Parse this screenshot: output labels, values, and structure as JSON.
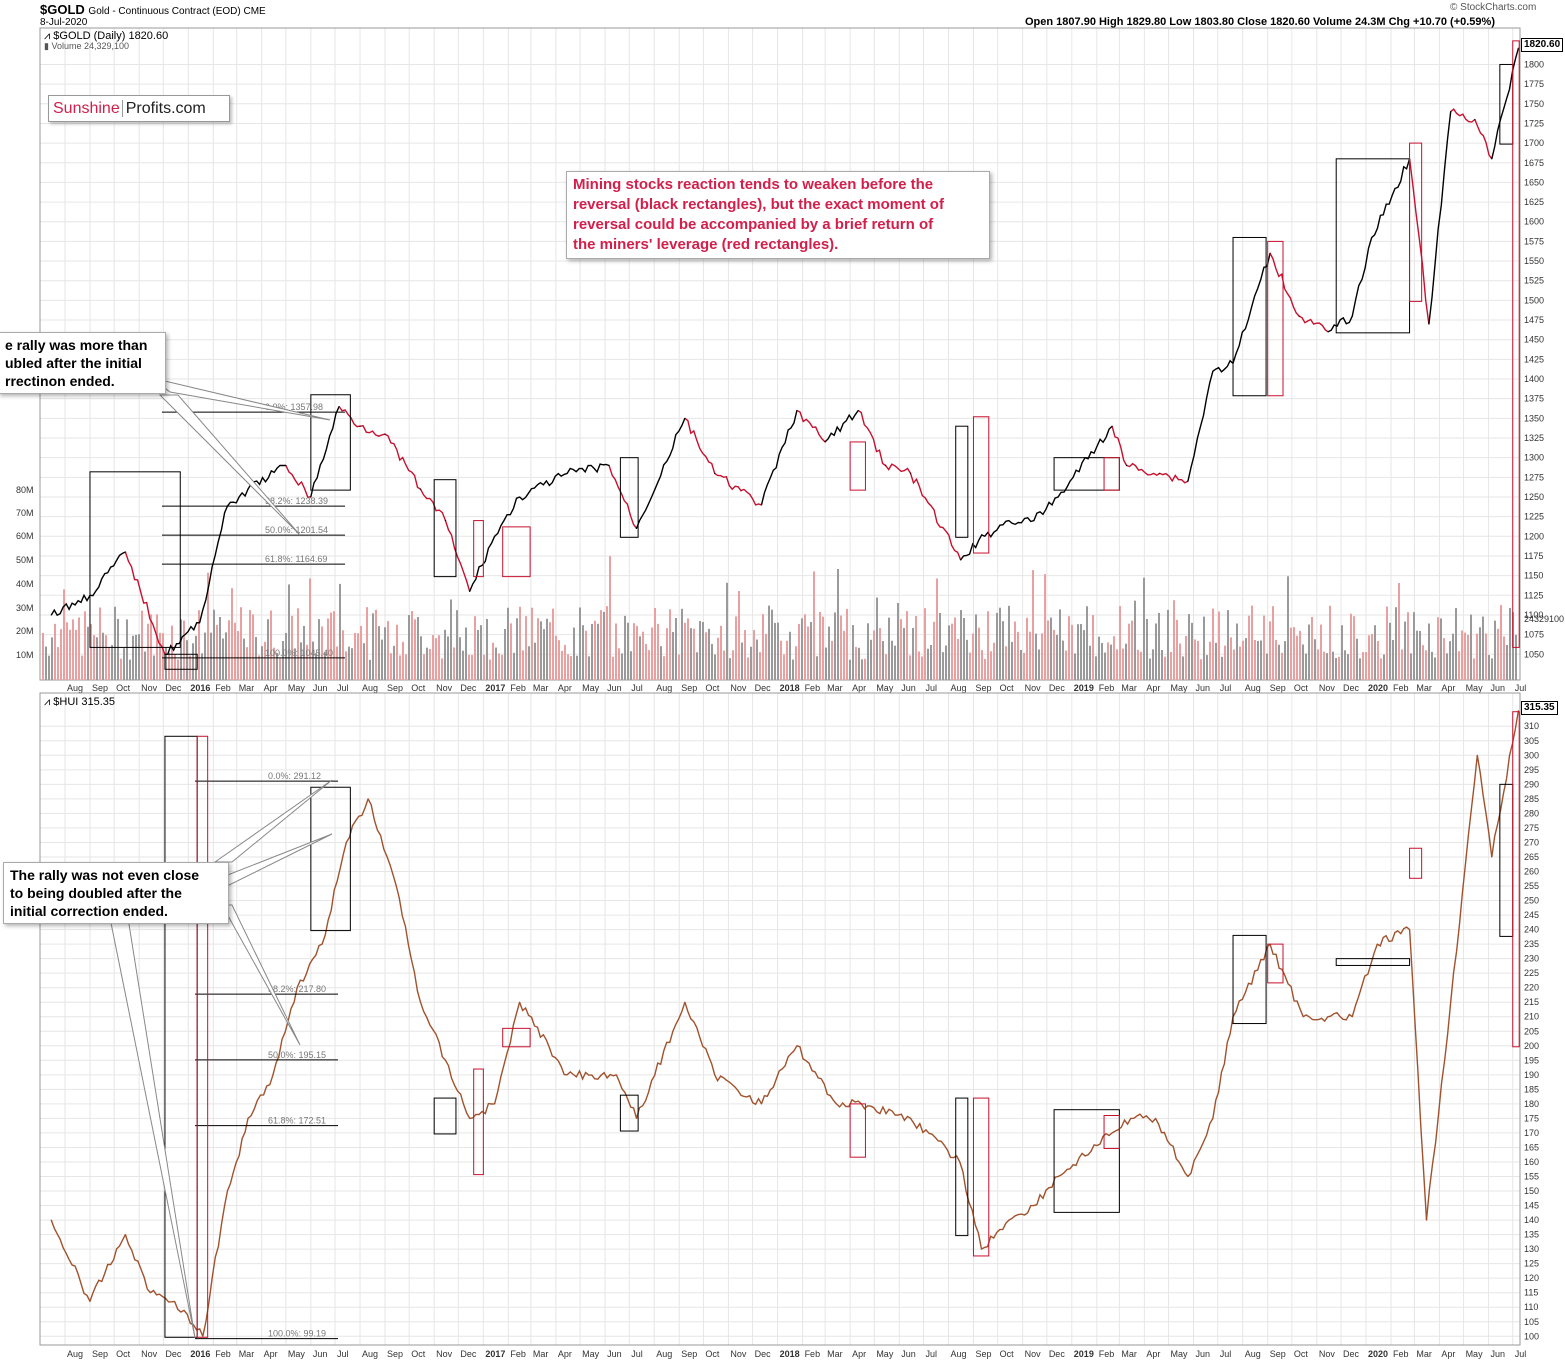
{
  "header": {
    "symbol": "$GOLD",
    "description": "Gold - Continuous Contract (EOD) CME",
    "date": "8-Jul-2020",
    "ohlc": "Open 1807.90  High 1829.80  Low 1803.80  Close 1820.60  Volume 24.3M  Chg +10.70 (+0.59%)",
    "source": "© StockCharts.com",
    "gold_legend": "$GOLD (Daily) 1820.60",
    "volume_legend": "Volume 24,329,100",
    "hui_legend": "$HUI 315.35"
  },
  "logo": {
    "part1": "Sunshine",
    "part2": "Profits.com"
  },
  "annotations": {
    "top_note": "e rally was more than\nubled after the initial\nrrectinon ended.",
    "bottom_note": "The rally was not even close\nto being doubled after the\ninitial correction ended.",
    "center_note": "Mining stocks reaction tends to weaken before the\nreversal (black rectangles), but the exact moment of\nreversal could be accompanied by a brief return of\nthe miners' leverage (red rectangles)."
  },
  "colors": {
    "gold_up": "#000000",
    "gold_down": "#c8102e",
    "hui": "#a0522d",
    "volume_gray": "#9a9a9a",
    "volume_red": "#e8a0a0",
    "grid": "#e6e6e6",
    "accent": "#d21f4b"
  },
  "chart_data": [
    {
      "type": "line",
      "name": "$GOLD (Daily)",
      "last_value": 1820.6,
      "ylim": [
        1030,
        1840
      ],
      "y_ticks": [
        1050,
        1075,
        1100,
        1125,
        1150,
        1175,
        1200,
        1225,
        1250,
        1275,
        1300,
        1325,
        1350,
        1375,
        1400,
        1425,
        1450,
        1475,
        1500,
        1525,
        1550,
        1575,
        1600,
        1625,
        1650,
        1675,
        1700,
        1725,
        1750,
        1775,
        1800
      ],
      "x": [
        "2015-07-15",
        "2015-09-01",
        "2015-10-15",
        "2015-12-03",
        "2016-01-15",
        "2016-02-15",
        "2016-03-15",
        "2016-05-01",
        "2016-06-01",
        "2016-07-06",
        "2016-08-01",
        "2016-09-01",
        "2016-10-15",
        "2016-11-15",
        "2016-12-15",
        "2017-01-15",
        "2017-02-15",
        "2017-04-15",
        "2017-06-06",
        "2017-07-10",
        "2017-09-08",
        "2017-10-15",
        "2017-12-12",
        "2018-01-25",
        "2018-03-01",
        "2018-04-11",
        "2018-05-15",
        "2018-06-15",
        "2018-08-16",
        "2018-09-15",
        "2018-10-15",
        "2018-11-15",
        "2018-12-15",
        "2019-02-20",
        "2019-03-10",
        "2019-04-20",
        "2019-05-25",
        "2019-06-25",
        "2019-07-20",
        "2019-09-04",
        "2019-10-10",
        "2019-11-15",
        "2019-12-15",
        "2020-01-08",
        "2020-02-24",
        "2020-03-19",
        "2020-04-15",
        "2020-05-15",
        "2020-06-05",
        "2020-07-08"
      ],
      "values": [
        1100,
        1125,
        1180,
        1050,
        1090,
        1230,
        1260,
        1290,
        1250,
        1365,
        1340,
        1330,
        1260,
        1220,
        1130,
        1200,
        1250,
        1280,
        1290,
        1210,
        1350,
        1280,
        1240,
        1360,
        1320,
        1360,
        1290,
        1280,
        1170,
        1200,
        1220,
        1220,
        1250,
        1340,
        1290,
        1280,
        1270,
        1410,
        1420,
        1560,
        1480,
        1460,
        1480,
        1580,
        1680,
        1470,
        1740,
        1730,
        1680,
        1820.6
      ]
    },
    {
      "type": "bar",
      "name": "Volume",
      "last_value": 24329100,
      "y_tick_labels": [
        "10M",
        "20M",
        "30M",
        "40M",
        "50M",
        "60M",
        "70M",
        "80M"
      ]
    },
    {
      "type": "line",
      "name": "$HUI",
      "last_value": 315.35,
      "ylim": [
        97,
        318
      ],
      "y_ticks": [
        100,
        105,
        110,
        115,
        120,
        125,
        130,
        135,
        140,
        145,
        150,
        155,
        160,
        165,
        170,
        175,
        180,
        185,
        190,
        195,
        200,
        205,
        210,
        215,
        220,
        225,
        230,
        235,
        240,
        245,
        250,
        255,
        260,
        265,
        270,
        275,
        280,
        285,
        290,
        295,
        300,
        305,
        310
      ],
      "x": [
        "2015-07-15",
        "2015-09-01",
        "2015-10-15",
        "2015-11-15",
        "2015-12-15",
        "2016-01-19",
        "2016-02-15",
        "2016-03-15",
        "2016-04-15",
        "2016-05-15",
        "2016-06-15",
        "2016-07-15",
        "2016-08-11",
        "2016-09-15",
        "2016-10-15",
        "2016-11-15",
        "2016-12-15",
        "2017-01-15",
        "2017-02-15",
        "2017-04-15",
        "2017-06-15",
        "2017-07-10",
        "2017-09-08",
        "2017-10-15",
        "2017-12-12",
        "2018-01-25",
        "2018-03-15",
        "2018-04-15",
        "2018-06-15",
        "2018-08-15",
        "2018-09-11",
        "2018-10-15",
        "2018-11-15",
        "2018-12-15",
        "2019-02-20",
        "2019-03-15",
        "2019-04-15",
        "2019-05-25",
        "2019-06-25",
        "2019-07-20",
        "2019-09-04",
        "2019-10-15",
        "2019-12-15",
        "2020-01-15",
        "2020-02-24",
        "2020-03-16",
        "2020-04-15",
        "2020-05-18",
        "2020-06-05",
        "2020-07-08"
      ],
      "values": [
        140,
        112,
        135,
        115,
        112,
        100,
        145,
        175,
        190,
        220,
        235,
        270,
        285,
        255,
        215,
        195,
        175,
        180,
        215,
        190,
        190,
        175,
        215,
        190,
        180,
        200,
        180,
        180,
        175,
        160,
        130,
        140,
        145,
        155,
        170,
        175,
        175,
        155,
        175,
        210,
        235,
        210,
        210,
        235,
        240,
        140,
        215,
        300,
        265,
        315.35
      ]
    }
  ],
  "fib_gold": [
    {
      "label": "0.0%: 1357.98",
      "v": 1357.98
    },
    {
      "label": "38.2%: 1238.39",
      "v": 1238.39
    },
    {
      "label": "50.0%: 1201.54",
      "v": 1201.54
    },
    {
      "label": "61.8%: 1164.69",
      "v": 1164.69
    },
    {
      "label": "100.0%: 1045.40",
      "v": 1045.4
    }
  ],
  "fib_hui": [
    {
      "label": "0.0%: 291.12",
      "v": 291.12
    },
    {
      "label": "38.2%: 217.80",
      "v": 217.8
    },
    {
      "label": "50.0%: 195.15",
      "v": 195.15
    },
    {
      "label": "61.8%: 172.51",
      "v": 172.51
    },
    {
      "label": "100.0%: 99.19",
      "v": 99.19
    }
  ],
  "x_axis_labels": [
    "Aug",
    "Sep",
    "Oct",
    "Nov",
    "Dec",
    "2016",
    "Feb",
    "Mar",
    "Apr",
    "May",
    "Jun",
    "Jul",
    "Aug",
    "Sep",
    "Oct",
    "Nov",
    "Dec",
    "2017",
    "Feb",
    "Mar",
    "Apr",
    "May",
    "Jun",
    "Jul",
    "Aug",
    "Sep",
    "Oct",
    "Nov",
    "Dec",
    "2018",
    "Feb",
    "Mar",
    "Apr",
    "May",
    "Jun",
    "Jul",
    "Aug",
    "Sep",
    "Oct",
    "Nov",
    "Dec",
    "2019",
    "Feb",
    "Mar",
    "Apr",
    "May",
    "Jun",
    "Jul",
    "Aug",
    "Sep",
    "Oct",
    "Nov",
    "Dec",
    "2020",
    "Feb",
    "Mar",
    "Apr",
    "May",
    "Jun",
    "Jul"
  ],
  "volume_last_label": "24329100"
}
